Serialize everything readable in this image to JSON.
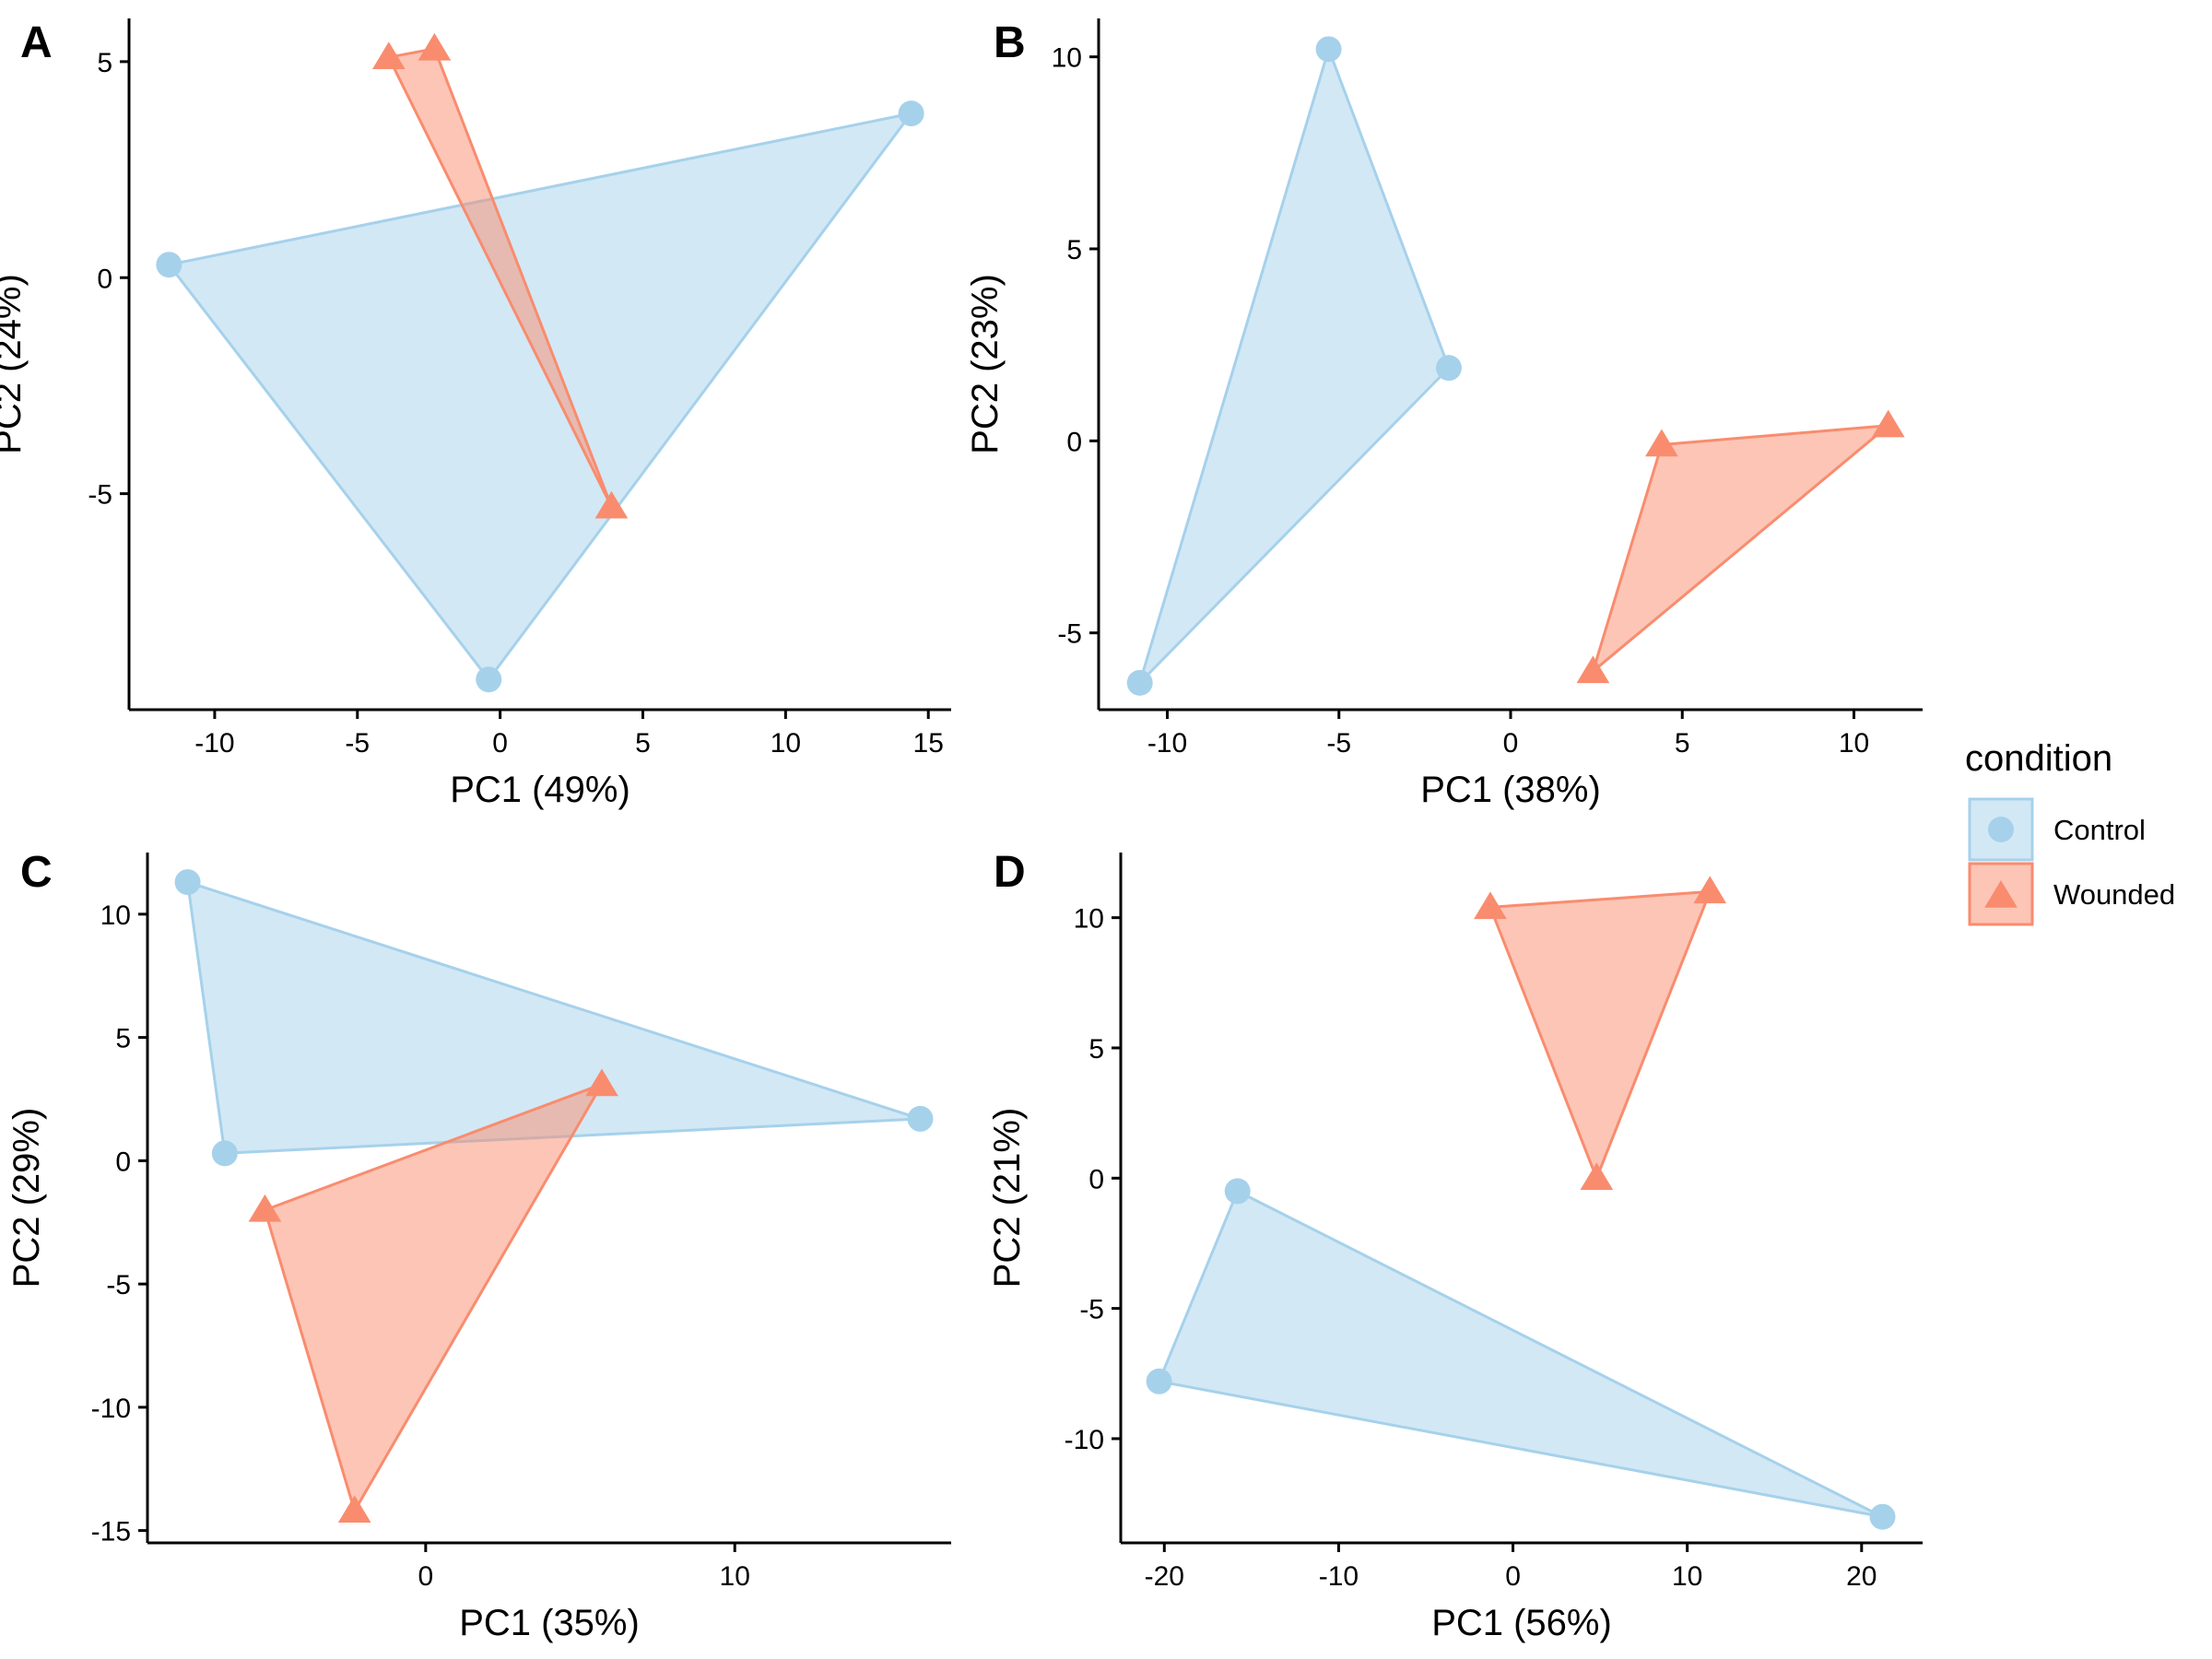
{
  "colors": {
    "control": "#A6D1EB",
    "control_fill": "rgba(166,209,235,0.50)",
    "wounded": "#F98C6E",
    "wounded_fill": "rgba(249,140,110,0.50)"
  },
  "legend": {
    "title": "condition",
    "items": [
      {
        "label": "Control",
        "marker": "circle",
        "color": "#A6D1EB"
      },
      {
        "label": "Wounded",
        "marker": "triangle",
        "color": "#F98C6E"
      }
    ]
  },
  "chart_data": [
    {
      "panel": "A",
      "type": "scatter",
      "xlabel": "PC1 (49%)",
      "ylabel": "PC2 (24%)",
      "xlim": [
        -13.0,
        15.8
      ],
      "ylim": [
        -10.0,
        6.0
      ],
      "xticks": [
        -10,
        -5,
        0,
        5,
        10,
        15
      ],
      "yticks": [
        -5,
        0,
        5
      ],
      "series": [
        {
          "name": "Control",
          "points": [
            [
              -11.6,
              0.3
            ],
            [
              14.4,
              3.8
            ],
            [
              -0.4,
              -9.3
            ]
          ]
        },
        {
          "name": "Wounded",
          "points": [
            [
              -3.9,
              5.1
            ],
            [
              -2.3,
              5.3
            ],
            [
              3.9,
              -5.3
            ]
          ]
        }
      ]
    },
    {
      "panel": "B",
      "type": "scatter",
      "xlabel": "PC1 (38%)",
      "ylabel": "PC2 (23%)",
      "xlim": [
        -12.0,
        12.0
      ],
      "ylim": [
        -7.0,
        11.0
      ],
      "xticks": [
        -10,
        -5,
        0,
        5,
        10
      ],
      "yticks": [
        -5,
        0,
        5,
        10
      ],
      "series": [
        {
          "name": "Control",
          "points": [
            [
              -5.3,
              10.2
            ],
            [
              -1.8,
              1.9
            ],
            [
              -10.8,
              -6.3
            ]
          ]
        },
        {
          "name": "Wounded",
          "points": [
            [
              4.4,
              -0.1
            ],
            [
              11.0,
              0.4
            ],
            [
              2.4,
              -6.0
            ]
          ]
        }
      ]
    },
    {
      "panel": "C",
      "type": "scatter",
      "xlabel": "PC1 (35%)",
      "ylabel": "PC2 (29%)",
      "xlim": [
        -9.0,
        17.0
      ],
      "ylim": [
        -15.5,
        12.5
      ],
      "xticks": [
        0,
        10
      ],
      "yticks": [
        -15,
        -10,
        -5,
        0,
        5,
        10
      ],
      "series": [
        {
          "name": "Control",
          "points": [
            [
              -7.7,
              11.3
            ],
            [
              16.0,
              1.7
            ],
            [
              -6.5,
              0.3
            ]
          ]
        },
        {
          "name": "Wounded",
          "points": [
            [
              5.7,
              3.1
            ],
            [
              -5.2,
              -2.0
            ],
            [
              -2.3,
              -14.2
            ]
          ]
        }
      ]
    },
    {
      "panel": "D",
      "type": "scatter",
      "xlabel": "PC1 (56%)",
      "ylabel": "PC2 (21%)",
      "xlim": [
        -22.5,
        23.5
      ],
      "ylim": [
        -14.0,
        12.5
      ],
      "xticks": [
        -20,
        -10,
        0,
        10,
        20
      ],
      "yticks": [
        -10,
        -5,
        0,
        5,
        10
      ],
      "series": [
        {
          "name": "Control",
          "points": [
            [
              -15.8,
              -0.5
            ],
            [
              -20.3,
              -7.8
            ],
            [
              21.2,
              -13.0
            ]
          ]
        },
        {
          "name": "Wounded",
          "points": [
            [
              -1.3,
              10.4
            ],
            [
              11.3,
              11.0
            ],
            [
              4.8,
              0.0
            ]
          ]
        }
      ]
    }
  ]
}
